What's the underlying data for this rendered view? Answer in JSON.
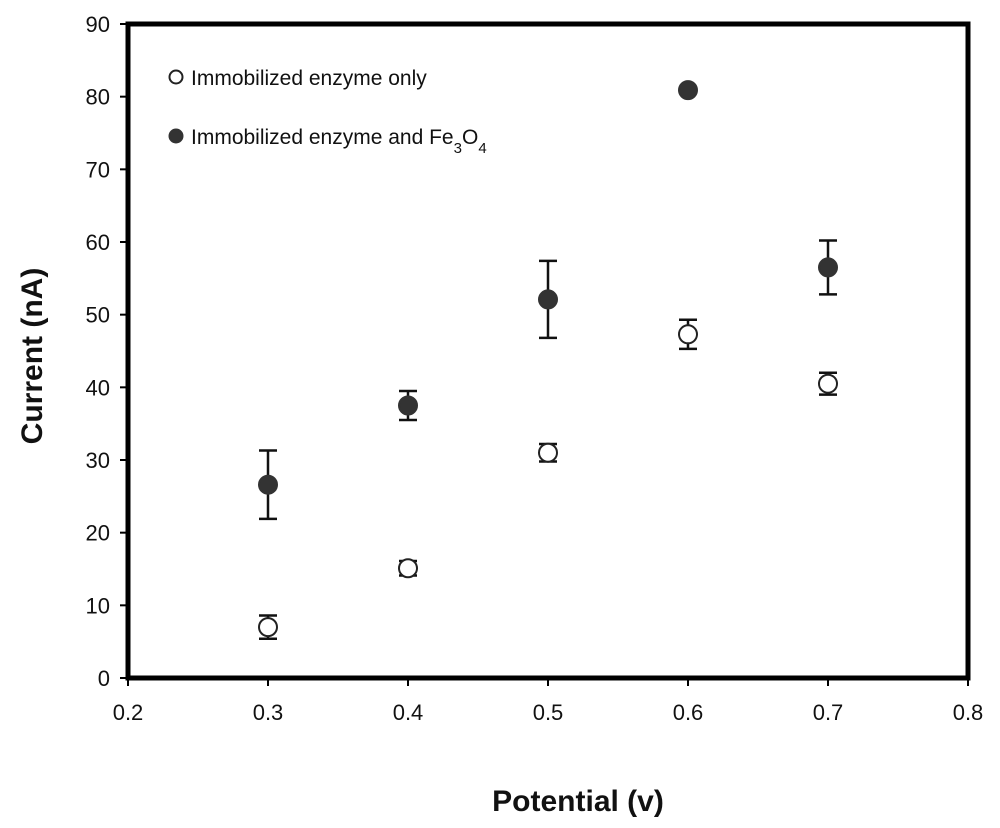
{
  "chart_data": {
    "type": "scatter",
    "xlabel": "Potential (v)",
    "ylabel": "Current (nA)",
    "xlim": [
      0.2,
      0.8
    ],
    "ylim": [
      0,
      90
    ],
    "xticks": [
      "0.2",
      "0.3",
      "0.4",
      "0.5",
      "0.6",
      "0.7",
      "0.8"
    ],
    "yticks": [
      "0",
      "10",
      "20",
      "30",
      "40",
      "50",
      "60",
      "70",
      "80",
      "90"
    ],
    "grid": false,
    "legend_position": "top-left",
    "series": [
      {
        "name": "Immobilized enzyme only",
        "marker": "open-circle",
        "color": "#222222",
        "points": [
          {
            "x": 0.3,
            "y": 7.0,
            "err": 1.6
          },
          {
            "x": 0.4,
            "y": 15.1,
            "err": 1.0
          },
          {
            "x": 0.5,
            "y": 31.0,
            "err": 1.2
          },
          {
            "x": 0.6,
            "y": 47.3,
            "err": 2.0
          },
          {
            "x": 0.7,
            "y": 40.5,
            "err": 1.5
          }
        ]
      },
      {
        "name_parts": [
          {
            "text": "Immobilized enzyme and Fe",
            "sub": false
          },
          {
            "text": "3",
            "sub": true
          },
          {
            "text": "O",
            "sub": false
          },
          {
            "text": "4",
            "sub": true
          }
        ],
        "name": "Immobilized enzyme and Fe3O4",
        "marker": "filled-circle",
        "color": "#333333",
        "points": [
          {
            "x": 0.3,
            "y": 26.6,
            "err": 4.7
          },
          {
            "x": 0.4,
            "y": 37.5,
            "err": 2.0
          },
          {
            "x": 0.5,
            "y": 52.1,
            "err": 5.3
          },
          {
            "x": 0.6,
            "y": 80.9,
            "err": 0.2
          },
          {
            "x": 0.7,
            "y": 56.5,
            "err": 3.7
          }
        ]
      }
    ]
  }
}
